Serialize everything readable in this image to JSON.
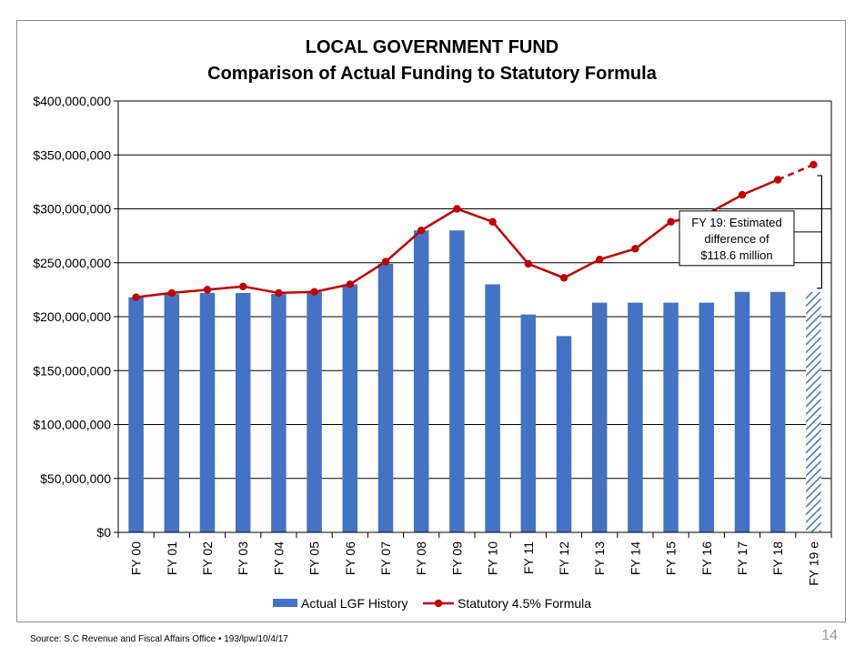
{
  "footer": {
    "source": "Source: S.C Revenue and Fiscal Affairs Office • 193/lpw/10/4/17",
    "page_number": "14"
  },
  "chart_data": {
    "type": "bar",
    "title_lines": [
      "LOCAL GOVERNMENT FUND",
      "Comparison of Actual Funding to Statutory Formula"
    ],
    "categories": [
      "FY 00",
      "FY 01",
      "FY 02",
      "FY 03",
      "FY 04",
      "FY 05",
      "FY 06",
      "FY 07",
      "FY 08",
      "FY 09",
      "FY 10",
      "FY 11",
      "FY 12",
      "FY 13",
      "FY 14",
      "FY 15",
      "FY 16",
      "FY 17",
      "FY 18",
      "FY 19 e"
    ],
    "ylim": [
      0,
      400000000
    ],
    "yticks": [
      0,
      50000000,
      100000000,
      150000000,
      200000000,
      250000000,
      300000000,
      350000000,
      400000000
    ],
    "ytick_labels": [
      "$0",
      "$50,000,000",
      "$100,000,000",
      "$150,000,000",
      "$200,000,000",
      "$250,000,000",
      "$300,000,000",
      "$350,000,000",
      "$400,000,000"
    ],
    "grid": true,
    "legend_position": "bottom",
    "series": [
      {
        "name": "Actual LGF History",
        "kind": "bar",
        "color": "#4472c4",
        "values": [
          218000000,
          221000000,
          222000000,
          222000000,
          221000000,
          223000000,
          230000000,
          249000000,
          280000000,
          280000000,
          230000000,
          202000000,
          182000000,
          213000000,
          213000000,
          213000000,
          213000000,
          223000000,
          223000000,
          223000000
        ],
        "estimated_last": true
      },
      {
        "name": "Statutory 4.5% Formula",
        "kind": "line",
        "color": "#c00000",
        "values": [
          218000000,
          222000000,
          225000000,
          228000000,
          222000000,
          223000000,
          230000000,
          251000000,
          280000000,
          300000000,
          288000000,
          249000000,
          236000000,
          253000000,
          263000000,
          288000000,
          295000000,
          313000000,
          327000000,
          341000000
        ],
        "dashed_last_segment": true
      }
    ],
    "annotation": {
      "lines": [
        "FY 19: Estimated",
        "difference of",
        "$118.6 million"
      ]
    }
  }
}
